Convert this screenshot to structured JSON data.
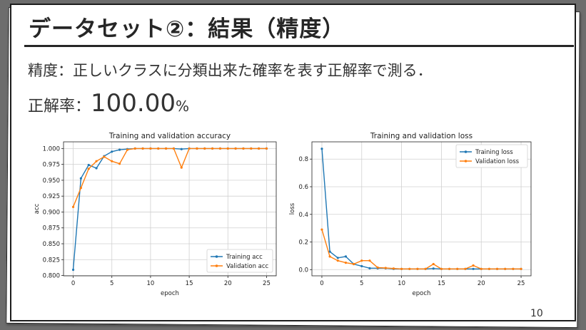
{
  "slide": {
    "title": "データセット②：結果（精度）",
    "description": "精度：正しいクラスに分類出来た確率を表す正解率で測る．",
    "accuracy_label": "正解率：",
    "accuracy_value": "100.00",
    "accuracy_unit": "%",
    "page_number": "10"
  },
  "colors": {
    "train": "#1f77b4",
    "val": "#ff7f0e",
    "grid": "#d0d0d0"
  },
  "chart_data": [
    {
      "type": "line",
      "title": "Training and validation accuracy",
      "xlabel": "epoch",
      "ylabel": "acc",
      "x": [
        0,
        1,
        2,
        3,
        4,
        5,
        6,
        7,
        8,
        9,
        10,
        11,
        12,
        13,
        14,
        15,
        16,
        17,
        18,
        19,
        20,
        21,
        22,
        23,
        24,
        25
      ],
      "xticks": [
        0,
        5,
        10,
        15,
        20,
        25
      ],
      "yticks": [
        0.8,
        0.825,
        0.85,
        0.875,
        0.9,
        0.925,
        0.95,
        0.975,
        1.0
      ],
      "ytick_labels": [
        "0.800",
        "0.825",
        "0.850",
        "0.875",
        "0.900",
        "0.925",
        "0.950",
        "0.975",
        "1.000"
      ],
      "xlim": [
        -1.25,
        26.25
      ],
      "ylim": [
        0.7995,
        1.0105
      ],
      "grid": true,
      "legend": "lower-right",
      "series": [
        {
          "name": "Training acc",
          "color": "#1f77b4",
          "values": [
            0.809,
            0.953,
            0.974,
            0.969,
            0.988,
            0.995,
            0.998,
            0.999,
            1.0,
            1.0,
            1.0,
            1.0,
            1.0,
            1.0,
            0.999,
            1.0,
            1.0,
            1.0,
            1.0,
            1.0,
            1.0,
            1.0,
            1.0,
            1.0,
            1.0,
            1.0
          ]
        },
        {
          "name": "Validation acc",
          "color": "#ff7f0e",
          "values": [
            0.908,
            0.938,
            0.968,
            0.98,
            0.987,
            0.98,
            0.976,
            0.998,
            1.0,
            1.0,
            1.0,
            1.0,
            1.0,
            1.0,
            0.97,
            1.0,
            1.0,
            1.0,
            1.0,
            1.0,
            1.0,
            1.0,
            1.0,
            1.0,
            1.0,
            1.0
          ]
        }
      ]
    },
    {
      "type": "line",
      "title": "Training and validation loss",
      "xlabel": "epoch",
      "ylabel": "loss",
      "x": [
        0,
        1,
        2,
        3,
        4,
        5,
        6,
        7,
        8,
        9,
        10,
        11,
        12,
        13,
        14,
        15,
        16,
        17,
        18,
        19,
        20,
        21,
        22,
        23,
        24,
        25
      ],
      "xticks": [
        0,
        5,
        10,
        15,
        20,
        25
      ],
      "yticks": [
        0.0,
        0.2,
        0.4,
        0.6,
        0.8
      ],
      "ytick_labels": [
        "0.0",
        "0.2",
        "0.4",
        "0.6",
        "0.8"
      ],
      "xlim": [
        -1.25,
        26.25
      ],
      "ylim": [
        -0.045,
        0.925
      ],
      "grid": true,
      "legend": "top-right",
      "series": [
        {
          "name": "Training loss",
          "color": "#1f77b4",
          "values": [
            0.875,
            0.13,
            0.085,
            0.095,
            0.04,
            0.025,
            0.01,
            0.01,
            0.01,
            0.005,
            0.005,
            0.005,
            0.005,
            0.005,
            0.008,
            0.005,
            0.005,
            0.005,
            0.005,
            0.005,
            0.005,
            0.005,
            0.005,
            0.005,
            0.005,
            0.005
          ]
        },
        {
          "name": "Validation loss",
          "color": "#ff7f0e",
          "values": [
            0.29,
            0.095,
            0.065,
            0.05,
            0.04,
            0.065,
            0.065,
            0.015,
            0.012,
            0.008,
            0.005,
            0.005,
            0.005,
            0.005,
            0.04,
            0.005,
            0.005,
            0.005,
            0.005,
            0.03,
            0.005,
            0.005,
            0.005,
            0.005,
            0.005,
            0.005
          ]
        }
      ]
    }
  ]
}
